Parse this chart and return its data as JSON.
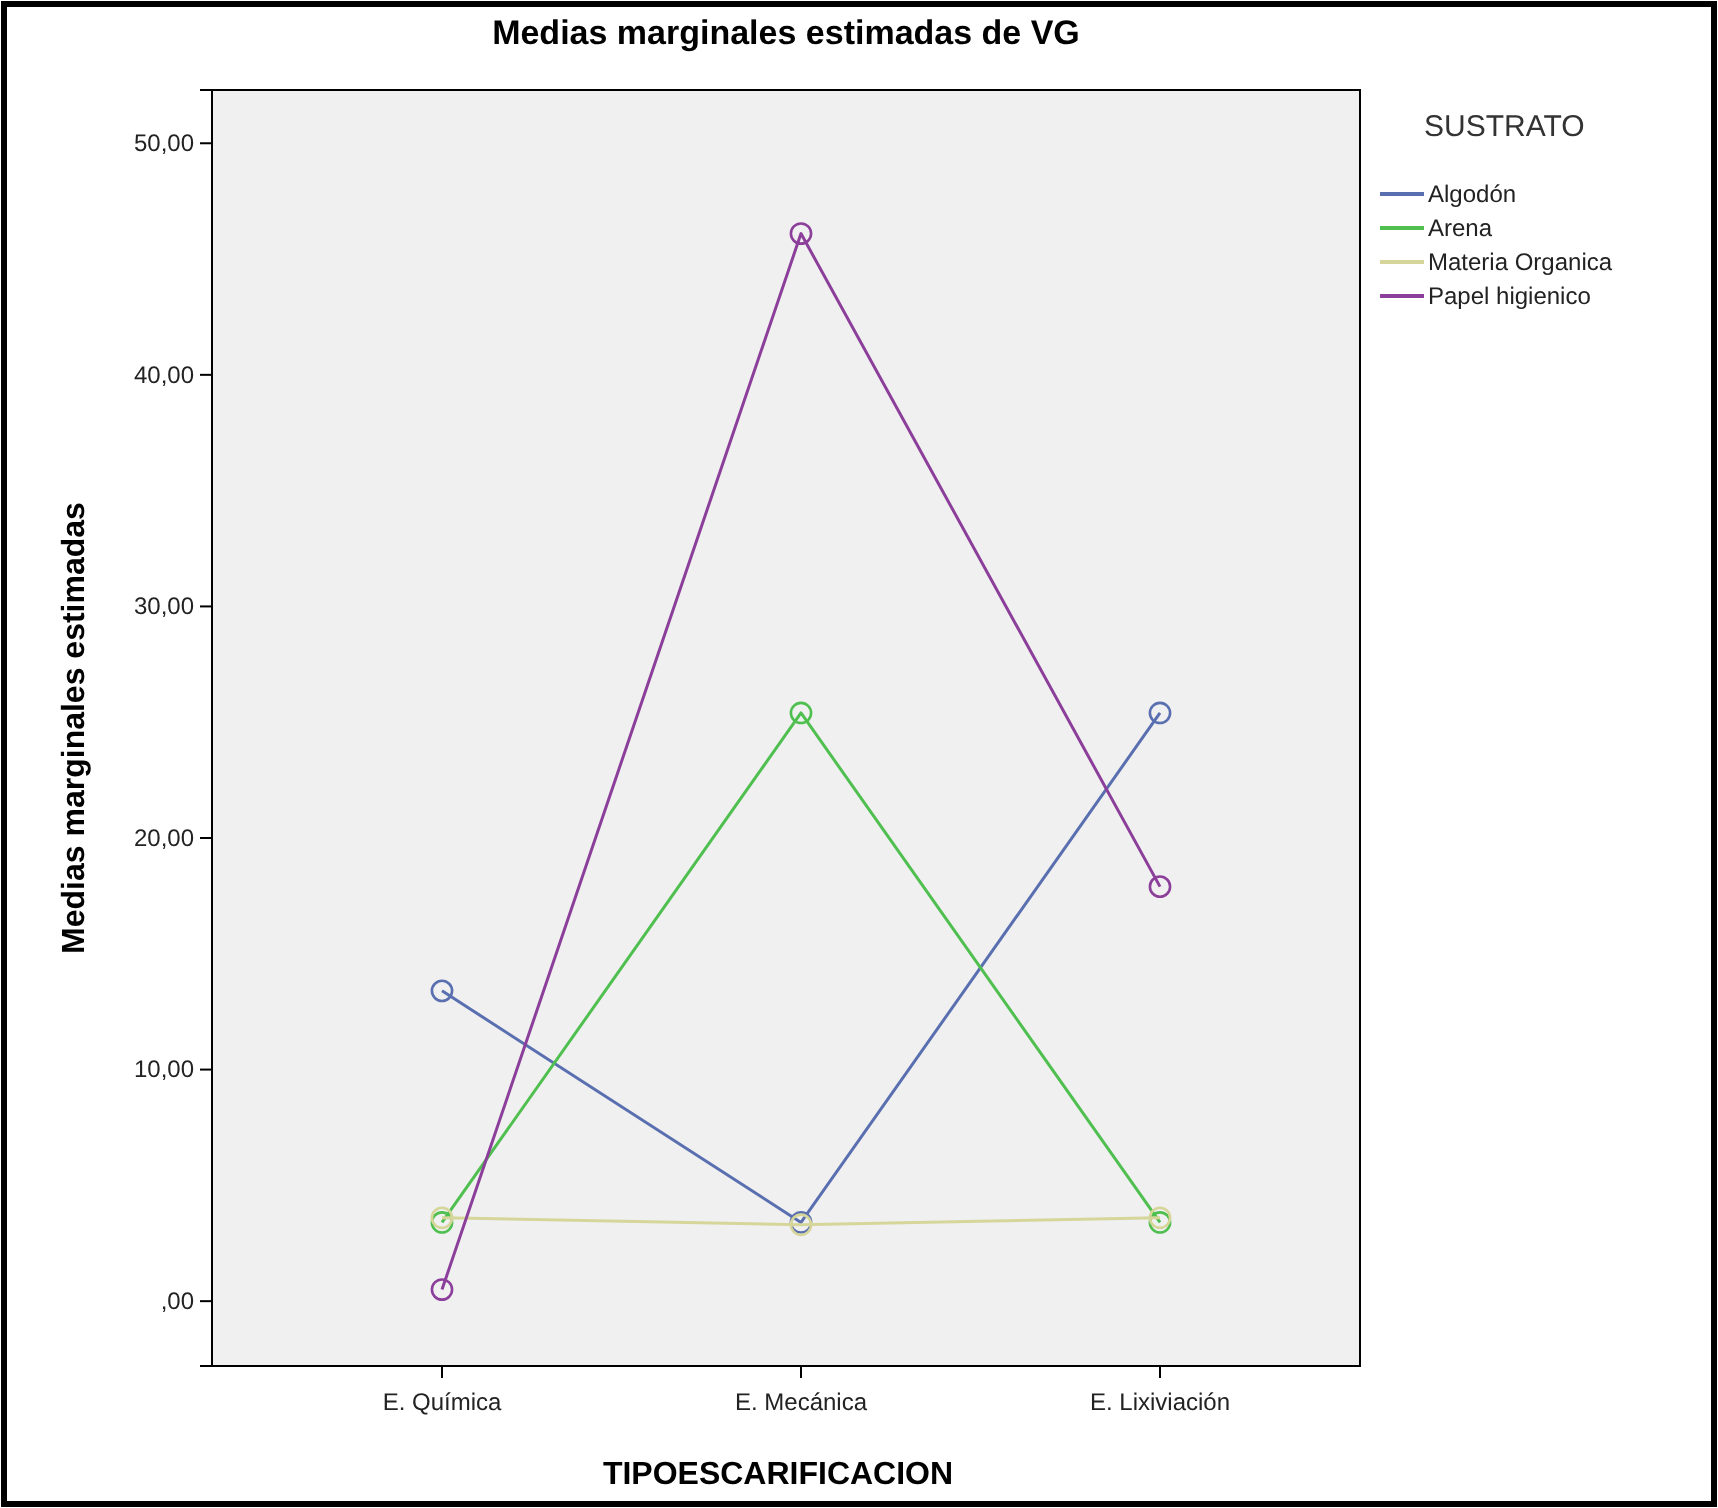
{
  "chart_data": {
    "type": "line",
    "title": "Medias marginales estimadas de VG",
    "xlabel": "TIPOESCARIFICACION",
    "ylabel": "Medias marginales estimadas",
    "legend_title": "SUSTRATO",
    "categories": [
      "E. Química",
      "E. Mecánica",
      "E. Lixiviación"
    ],
    "series": [
      {
        "name": "Algodón",
        "color": "#5a6fb0",
        "values": [
          13.4,
          3.4,
          25.4
        ]
      },
      {
        "name": "Arena",
        "color": "#4fbf4f",
        "values": [
          3.4,
          25.4,
          3.4
        ]
      },
      {
        "name": "Materia Organica",
        "color": "#d6d69a",
        "values": [
          3.6,
          3.3,
          3.6
        ]
      },
      {
        "name": "Papel  higienico",
        "color": "#8c3f9a",
        "values": [
          0.5,
          46.1,
          17.9
        ]
      }
    ],
    "ylim": [
      -2.8,
      52.3
    ],
    "yticks": [
      {
        "value": 0,
        "label": ",00"
      },
      {
        "value": 10,
        "label": "10,00"
      },
      {
        "value": 20,
        "label": "20,00"
      },
      {
        "value": 30,
        "label": "30,00"
      },
      {
        "value": 40,
        "label": "40,00"
      },
      {
        "value": 50,
        "label": "50,00"
      }
    ],
    "grid": false,
    "legend": "right",
    "marker": "circle",
    "line_style": "solid"
  }
}
